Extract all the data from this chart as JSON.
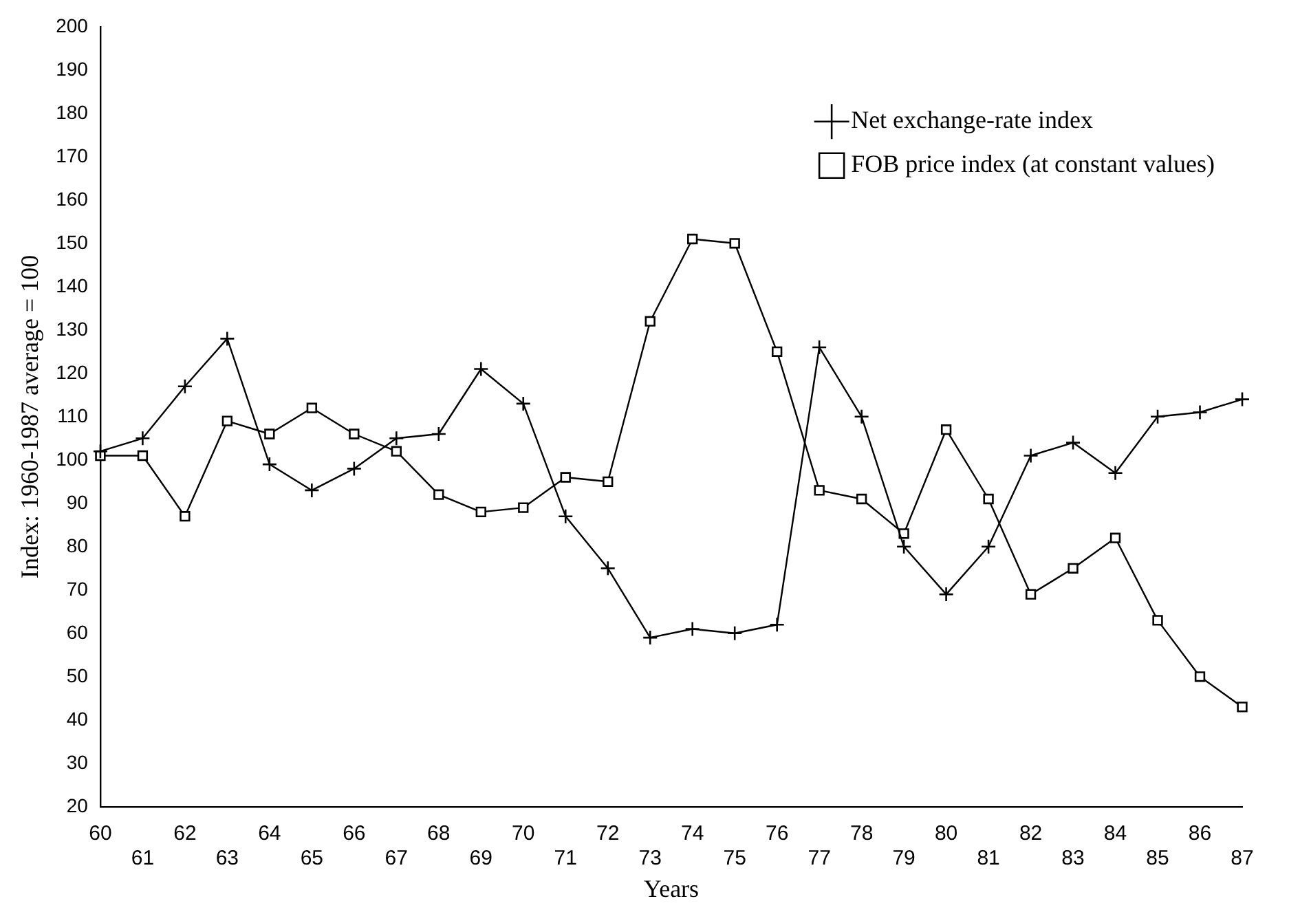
{
  "chart_data": {
    "type": "line",
    "xlabel": "Years",
    "ylabel": "Index: 1960-1987 average = 100",
    "categories": [
      "60",
      "61",
      "62",
      "63",
      "64",
      "65",
      "66",
      "67",
      "68",
      "69",
      "70",
      "71",
      "72",
      "73",
      "74",
      "75",
      "76",
      "77",
      "78",
      "79",
      "80",
      "81",
      "82",
      "83",
      "84",
      "85",
      "86",
      "87"
    ],
    "series": [
      {
        "name": "Net exchange-rate index",
        "color": "#000000",
        "marker": "cross",
        "values": [
          102,
          105,
          117,
          128,
          99,
          93,
          98,
          105,
          106,
          121,
          113,
          87,
          75,
          59,
          61,
          60,
          62,
          126,
          110,
          80,
          69,
          80,
          101,
          104,
          97,
          110,
          111,
          114
        ]
      },
      {
        "name": "FOB price index (at constant values)",
        "color": "#000000",
        "marker": "square",
        "values": [
          101,
          101,
          87,
          109,
          106,
          112,
          106,
          102,
          92,
          88,
          89,
          96,
          95,
          132,
          151,
          150,
          125,
          93,
          91,
          83,
          107,
          91,
          69,
          75,
          82,
          63,
          50,
          43
        ]
      }
    ],
    "ylim": [
      20,
      200
    ],
    "yticks": [
      20,
      30,
      40,
      50,
      60,
      70,
      80,
      90,
      100,
      110,
      120,
      130,
      140,
      150,
      160,
      170,
      180,
      190,
      200
    ],
    "grid": false,
    "legend": "top right",
    "line_style": "solid"
  }
}
